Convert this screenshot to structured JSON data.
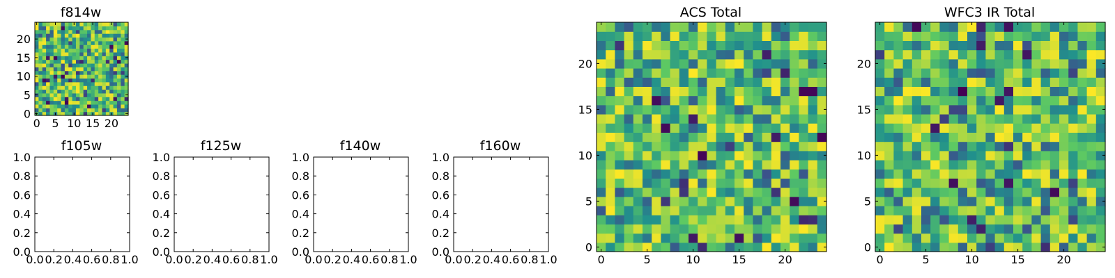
{
  "colors": {
    "background": "#ffffff",
    "axis": "#000000",
    "colormap": "viridis",
    "viridis_stops": [
      "#440154",
      "#3b528b",
      "#21918c",
      "#5ec962",
      "#fde725"
    ]
  },
  "chart_data": [
    {
      "type": "heatmap",
      "title": "f814w",
      "xlim": [
        -0.5,
        24.5
      ],
      "ylim": [
        -0.5,
        24.5
      ],
      "xticks": [
        0,
        5,
        10,
        15,
        20
      ],
      "xtick_labels": [
        "0",
        "5",
        "10",
        "15",
        "20"
      ],
      "yticks": [
        0,
        5,
        10,
        15,
        20
      ],
      "ytick_labels": [
        "0",
        "5",
        "10",
        "15",
        "20"
      ],
      "grid_size": [
        25,
        25
      ],
      "value_range": [
        0,
        1
      ],
      "seed": 814
    },
    {
      "type": "empty",
      "title": "f105w",
      "xlim": [
        0,
        1
      ],
      "ylim": [
        0,
        1
      ],
      "xticks": [
        0,
        0.2,
        0.4,
        0.6,
        0.8,
        1.0
      ],
      "xtick_labels": [
        "0.0",
        "0.2",
        "0.4",
        "0.6",
        "0.8",
        "1.0"
      ],
      "yticks": [
        0,
        0.2,
        0.4,
        0.6,
        0.8,
        1.0
      ],
      "ytick_labels": [
        "0.0",
        "0.2",
        "0.4",
        "0.6",
        "0.8",
        "1.0"
      ]
    },
    {
      "type": "empty",
      "title": "f125w",
      "xlim": [
        0,
        1
      ],
      "ylim": [
        0,
        1
      ],
      "xticks": [
        0,
        0.2,
        0.4,
        0.6,
        0.8,
        1.0
      ],
      "xtick_labels": [
        "0.0",
        "0.2",
        "0.4",
        "0.6",
        "0.8",
        "1.0"
      ],
      "yticks": [
        0,
        0.2,
        0.4,
        0.6,
        0.8,
        1.0
      ],
      "ytick_labels": [
        "0.0",
        "0.2",
        "0.4",
        "0.6",
        "0.8",
        "1.0"
      ]
    },
    {
      "type": "empty",
      "title": "f140w",
      "xlim": [
        0,
        1
      ],
      "ylim": [
        0,
        1
      ],
      "xticks": [
        0,
        0.2,
        0.4,
        0.6,
        0.8,
        1.0
      ],
      "xtick_labels": [
        "0.0",
        "0.2",
        "0.4",
        "0.6",
        "0.8",
        "1.0"
      ],
      "yticks": [
        0,
        0.2,
        0.4,
        0.6,
        0.8,
        1.0
      ],
      "ytick_labels": [
        "0.0",
        "0.2",
        "0.4",
        "0.6",
        "0.8",
        "1.0"
      ]
    },
    {
      "type": "empty",
      "title": "f160w",
      "xlim": [
        0,
        1
      ],
      "ylim": [
        0,
        1
      ],
      "xticks": [
        0,
        0.2,
        0.4,
        0.6,
        0.8,
        1.0
      ],
      "xtick_labels": [
        "0.0",
        "0.2",
        "0.4",
        "0.6",
        "0.8",
        "1.0"
      ],
      "yticks": [
        0,
        0.2,
        0.4,
        0.6,
        0.8,
        1.0
      ],
      "ytick_labels": [
        "0.0",
        "0.2",
        "0.4",
        "0.6",
        "0.8",
        "1.0"
      ]
    },
    {
      "type": "heatmap",
      "title": "ACS Total",
      "xlim": [
        -0.5,
        24.5
      ],
      "ylim": [
        -0.5,
        24.5
      ],
      "xticks": [
        0,
        5,
        10,
        15,
        20
      ],
      "xtick_labels": [
        "0",
        "5",
        "10",
        "15",
        "20"
      ],
      "yticks": [
        0,
        5,
        10,
        15,
        20
      ],
      "ytick_labels": [
        "0",
        "5",
        "10",
        "15",
        "20"
      ],
      "grid_size": [
        25,
        25
      ],
      "value_range": [
        0,
        1
      ],
      "seed": 1001
    },
    {
      "type": "heatmap",
      "title": "WFC3 IR Total",
      "xlim": [
        -0.5,
        24.5
      ],
      "ylim": [
        -0.5,
        24.5
      ],
      "xticks": [
        0,
        5,
        10,
        15,
        20
      ],
      "xtick_labels": [
        "0",
        "5",
        "10",
        "15",
        "20"
      ],
      "yticks": [
        0,
        5,
        10,
        15,
        20
      ],
      "ytick_labels": [
        "0",
        "5",
        "10",
        "15",
        "20"
      ],
      "grid_size": [
        25,
        25
      ],
      "value_range": [
        0,
        1
      ],
      "seed": 3003
    }
  ]
}
